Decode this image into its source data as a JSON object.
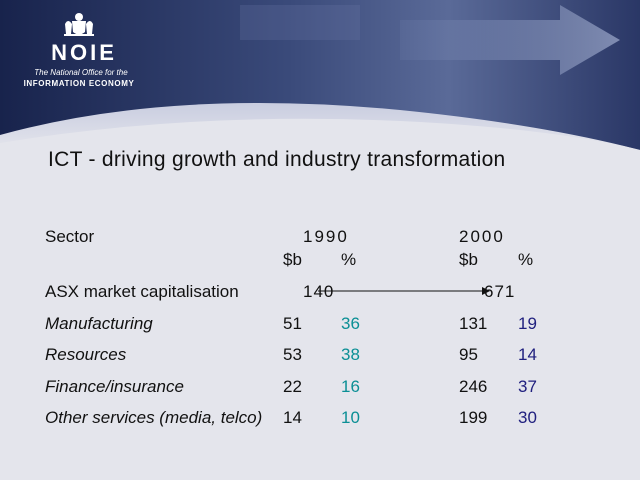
{
  "logo": {
    "name": "NOIE",
    "line1": "The National Office for the",
    "line2": "INFORMATION ECONOMY"
  },
  "title": "ICT - driving growth and industry transformation",
  "table": {
    "sector_header": "Sector",
    "year1": "1990",
    "year2": "2000",
    "unit_b": "$b",
    "unit_pct": "%",
    "asx": {
      "label": "ASX market capitalisation",
      "v1990": "140",
      "v2000": "671"
    },
    "rows": [
      {
        "label": "Manufacturing",
        "b1990": "51",
        "p1990": "36",
        "b2000": "131",
        "p2000": "19"
      },
      {
        "label": "Resources",
        "b1990": "53",
        "p1990": "38",
        "b2000": "95",
        "p2000": "14"
      },
      {
        "label": "Finance/insurance",
        "b1990": "22",
        "p1990": "16",
        "b2000": "246",
        "p2000": "37"
      },
      {
        "label": "Other services (media, telco)",
        "b1990": "14",
        "p1990": "10",
        "b2000": "199",
        "p2000": "30"
      }
    ]
  },
  "colors": {
    "banner_dark": "#1e2a55",
    "banner_mid": "#4a5a8a",
    "pct_1990": "#0b8f95",
    "pct_2000": "#20207f",
    "background": "#e4e5ec"
  }
}
